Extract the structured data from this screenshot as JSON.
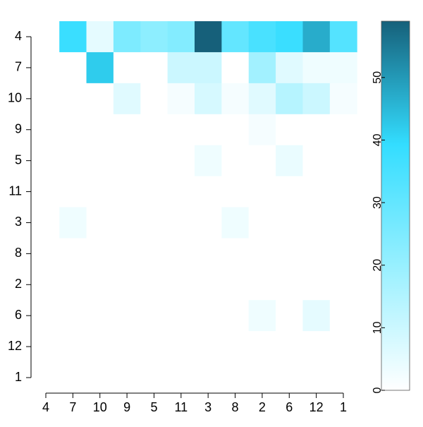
{
  "chart_data": {
    "type": "heatmap",
    "rows": [
      "4",
      "7",
      "10",
      "9",
      "5",
      "11",
      "3",
      "8",
      "2",
      "6",
      "12",
      "1"
    ],
    "columns": [
      "4",
      "7",
      "10",
      "9",
      "5",
      "11",
      "3",
      "8",
      "2",
      "6",
      "12",
      "1"
    ],
    "z": [
      [
        0,
        38,
        5,
        25,
        22,
        24,
        59,
        30,
        35,
        38,
        47,
        33
      ],
      [
        0,
        0,
        42,
        0,
        0,
        10,
        10,
        0,
        18,
        6,
        3,
        3
      ],
      [
        0,
        0,
        0,
        6,
        0,
        2,
        8,
        2,
        6,
        14,
        10,
        2
      ],
      [
        0,
        0,
        0,
        0,
        0,
        0,
        0,
        0,
        2,
        0,
        0,
        0
      ],
      [
        0,
        0,
        0,
        0,
        0,
        0,
        3,
        0,
        0,
        4,
        0,
        0
      ],
      [
        0,
        0,
        0,
        0,
        0,
        0,
        0,
        0,
        0,
        0,
        0,
        0
      ],
      [
        0,
        3,
        0,
        0,
        0,
        0,
        0,
        3,
        0,
        0,
        0,
        0
      ],
      [
        0,
        0,
        0,
        0,
        0,
        0,
        0,
        0,
        0,
        0,
        0,
        0
      ],
      [
        0,
        0,
        0,
        0,
        0,
        0,
        0,
        0,
        0,
        0,
        0,
        0
      ],
      [
        0,
        0,
        0,
        0,
        0,
        0,
        0,
        0,
        3,
        0,
        5,
        0
      ],
      [
        0,
        0,
        0,
        0,
        0,
        0,
        0,
        0,
        0,
        0,
        0,
        0
      ],
      [
        0,
        0,
        0,
        0,
        0,
        0,
        0,
        0,
        0,
        0,
        0,
        0
      ]
    ],
    "colors": [
      "#ffffff",
      "#99f0ff",
      "#33ddff",
      "#16607a"
    ],
    "zlim": [
      0,
      59
    ],
    "zticks": [
      0,
      10,
      20,
      30,
      40,
      50
    ]
  }
}
